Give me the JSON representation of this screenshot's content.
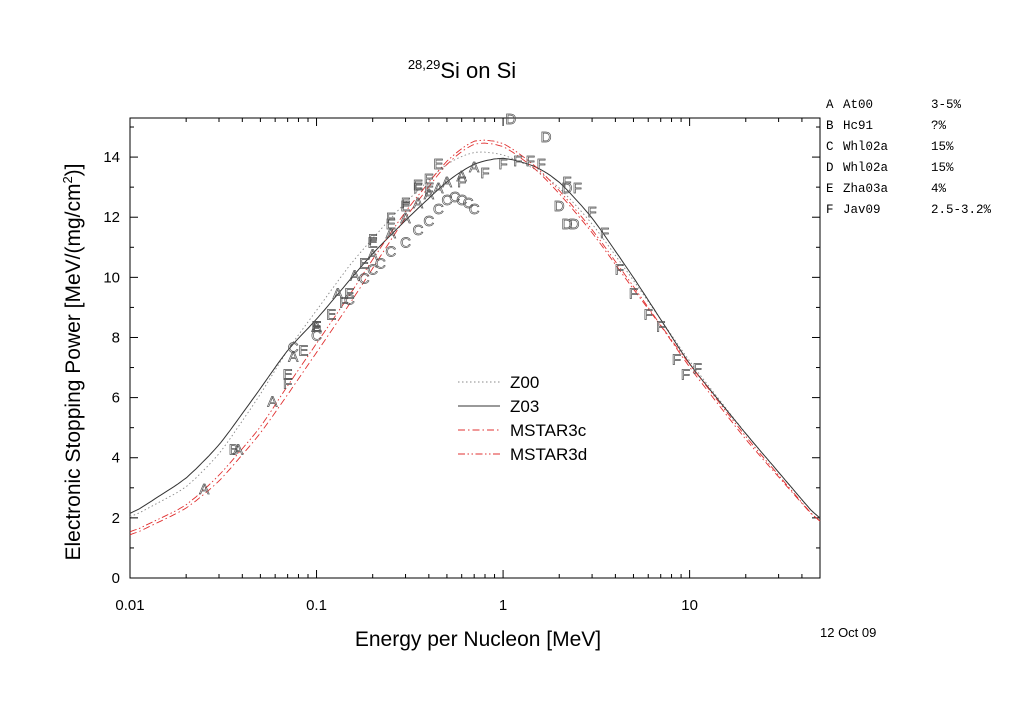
{
  "chart_data": {
    "type": "line",
    "title_sup": "28,29",
    "title_main": "Si on Si",
    "xlabel": "Energy per Nucleon [MeV]",
    "ylabel_main": "Electronic Stopping Power [MeV/(mg/cm",
    "ylabel_sup": "2",
    "ylabel_end": ")]",
    "x_scale": "log",
    "xlim": [
      0.01,
      50
    ],
    "ylim": [
      0,
      15.3
    ],
    "x_ticks": [
      {
        "value": 0.01,
        "label": "0.01"
      },
      {
        "value": 0.1,
        "label": "0.1"
      },
      {
        "value": 1,
        "label": "1"
      },
      {
        "value": 10,
        "label": "10"
      }
    ],
    "y_ticks": [
      {
        "value": 0,
        "label": "0"
      },
      {
        "value": 2,
        "label": "2"
      },
      {
        "value": 4,
        "label": "4"
      },
      {
        "value": 6,
        "label": "6"
      },
      {
        "value": 8,
        "label": "8"
      },
      {
        "value": 10,
        "label": "10"
      },
      {
        "value": 12,
        "label": "12"
      },
      {
        "value": 14,
        "label": "14"
      }
    ],
    "grid": false,
    "legend_position": "center",
    "series": [
      {
        "name": "Z00",
        "style": "dotted",
        "color": "#888888",
        "points": [
          [
            0.01,
            2.0
          ],
          [
            0.02,
            3.0
          ],
          [
            0.03,
            4.1
          ],
          [
            0.05,
            6.1
          ],
          [
            0.07,
            7.6
          ],
          [
            0.1,
            8.9
          ],
          [
            0.15,
            10.4
          ],
          [
            0.2,
            11.3
          ],
          [
            0.3,
            12.5
          ],
          [
            0.5,
            13.8
          ],
          [
            0.7,
            14.2
          ],
          [
            1,
            14.1
          ],
          [
            1.5,
            13.6
          ],
          [
            2,
            13.0
          ],
          [
            3,
            11.8
          ],
          [
            5,
            9.9
          ],
          [
            7,
            8.6
          ],
          [
            10,
            7.2
          ],
          [
            20,
            4.8
          ],
          [
            50,
            1.9
          ]
        ]
      },
      {
        "name": "Z03",
        "style": "solid",
        "color": "#333333",
        "points": [
          [
            0.01,
            2.1
          ],
          [
            0.02,
            3.3
          ],
          [
            0.03,
            4.4
          ],
          [
            0.05,
            6.3
          ],
          [
            0.07,
            7.6
          ],
          [
            0.1,
            8.6
          ],
          [
            0.15,
            9.9
          ],
          [
            0.2,
            10.8
          ],
          [
            0.3,
            11.9
          ],
          [
            0.5,
            13.2
          ],
          [
            0.7,
            13.8
          ],
          [
            1,
            14.0
          ],
          [
            1.5,
            13.7
          ],
          [
            2,
            13.2
          ],
          [
            3,
            12.0
          ],
          [
            5,
            10.0
          ],
          [
            7,
            8.6
          ],
          [
            10,
            7.1
          ],
          [
            20,
            4.8
          ],
          [
            50,
            1.9
          ]
        ]
      },
      {
        "name": "MSTAR3c",
        "style": "dashdot",
        "color": "#e03030",
        "points": [
          [
            0.01,
            1.4
          ],
          [
            0.02,
            2.3
          ],
          [
            0.03,
            3.2
          ],
          [
            0.05,
            4.8
          ],
          [
            0.07,
            6.1
          ],
          [
            0.1,
            7.5
          ],
          [
            0.15,
            9.1
          ],
          [
            0.2,
            10.3
          ],
          [
            0.3,
            12.0
          ],
          [
            0.5,
            13.8
          ],
          [
            0.7,
            14.5
          ],
          [
            1,
            14.4
          ],
          [
            1.5,
            13.6
          ],
          [
            2,
            12.8
          ],
          [
            3,
            11.5
          ],
          [
            5,
            9.6
          ],
          [
            7,
            8.4
          ],
          [
            10,
            7.0
          ],
          [
            20,
            4.6
          ],
          [
            50,
            1.8
          ]
        ]
      },
      {
        "name": "MSTAR3d",
        "style": "dashdotdot",
        "color": "#e03030",
        "points": [
          [
            0.01,
            1.5
          ],
          [
            0.02,
            2.4
          ],
          [
            0.03,
            3.4
          ],
          [
            0.05,
            5.0
          ],
          [
            0.07,
            6.4
          ],
          [
            0.1,
            7.8
          ],
          [
            0.15,
            9.4
          ],
          [
            0.2,
            10.6
          ],
          [
            0.3,
            12.2
          ],
          [
            0.5,
            13.9
          ],
          [
            0.7,
            14.6
          ],
          [
            1,
            14.5
          ],
          [
            1.5,
            13.7
          ],
          [
            2,
            12.9
          ],
          [
            3,
            11.6
          ],
          [
            5,
            9.7
          ],
          [
            7,
            8.4
          ],
          [
            10,
            7.1
          ],
          [
            20,
            4.7
          ],
          [
            50,
            1.8
          ]
        ]
      }
    ],
    "markers": [
      {
        "label": "A",
        "points": [
          [
            0.025,
            3.0
          ],
          [
            0.038,
            4.3
          ],
          [
            0.058,
            5.9
          ],
          [
            0.075,
            7.4
          ],
          [
            0.1,
            8.4
          ],
          [
            0.13,
            9.5
          ],
          [
            0.16,
            10.1
          ],
          [
            0.2,
            10.8
          ],
          [
            0.25,
            11.5
          ],
          [
            0.3,
            12.0
          ],
          [
            0.35,
            12.5
          ],
          [
            0.4,
            12.8
          ],
          [
            0.45,
            13.0
          ],
          [
            0.5,
            13.2
          ],
          [
            0.6,
            13.4
          ],
          [
            0.7,
            13.7
          ]
        ]
      },
      {
        "label": "B",
        "points": [
          [
            0.036,
            4.3
          ]
        ]
      },
      {
        "label": "C",
        "points": [
          [
            0.075,
            7.7
          ],
          [
            0.1,
            8.1
          ],
          [
            0.15,
            9.3
          ],
          [
            0.18,
            10.0
          ],
          [
            0.2,
            10.3
          ],
          [
            0.22,
            10.5
          ],
          [
            0.25,
            10.9
          ],
          [
            0.3,
            11.2
          ],
          [
            0.35,
            11.6
          ],
          [
            0.4,
            11.9
          ],
          [
            0.45,
            12.3
          ],
          [
            0.5,
            12.6
          ],
          [
            0.55,
            12.7
          ],
          [
            0.6,
            12.6
          ],
          [
            0.65,
            12.5
          ],
          [
            0.7,
            12.3
          ]
        ]
      },
      {
        "label": "D",
        "points": [
          [
            1.1,
            15.3
          ],
          [
            1.7,
            14.7
          ],
          [
            2.0,
            12.4
          ],
          [
            2.2,
            13.0
          ],
          [
            2.4,
            11.8
          ],
          [
            2.2,
            11.8
          ]
        ]
      },
      {
        "label": "E",
        "points": [
          [
            0.07,
            6.8
          ],
          [
            0.085,
            7.6
          ],
          [
            0.1,
            8.4
          ],
          [
            0.12,
            8.8
          ],
          [
            0.15,
            9.5
          ],
          [
            0.18,
            10.5
          ],
          [
            0.2,
            11.2
          ],
          [
            0.25,
            11.8
          ],
          [
            0.3,
            12.4
          ],
          [
            0.35,
            13.1
          ],
          [
            0.4,
            13.3
          ],
          [
            0.45,
            13.8
          ]
        ]
      },
      {
        "label": "F",
        "points": [
          [
            0.07,
            6.5
          ],
          [
            0.1,
            8.4
          ],
          [
            0.14,
            9.2
          ],
          [
            0.2,
            11.3
          ],
          [
            0.25,
            12.0
          ],
          [
            0.3,
            12.5
          ],
          [
            0.35,
            13.0
          ],
          [
            0.4,
            12.9
          ],
          [
            0.6,
            13.2
          ],
          [
            0.8,
            13.5
          ],
          [
            1.0,
            13.8
          ],
          [
            1.2,
            13.9
          ],
          [
            1.4,
            13.9
          ],
          [
            1.6,
            13.8
          ],
          [
            2.2,
            13.2
          ],
          [
            2.5,
            13.0
          ],
          [
            3.0,
            12.2
          ],
          [
            3.5,
            11.5
          ],
          [
            4.2,
            10.3
          ],
          [
            5.0,
            9.5
          ],
          [
            6.0,
            8.8
          ],
          [
            7.0,
            8.4
          ],
          [
            8.5,
            7.3
          ],
          [
            9.5,
            6.8
          ],
          [
            11,
            7.0
          ]
        ]
      }
    ],
    "legend": [
      "Z00",
      "Z03",
      "MSTAR3c",
      "MSTAR3d"
    ],
    "key_entries": [
      {
        "letter": "A",
        "ref": "At00",
        "unc": "3-5%"
      },
      {
        "letter": "B",
        "ref": "Hc91",
        "unc": "?%"
      },
      {
        "letter": "C",
        "ref": "Whl02a",
        "unc": "15%"
      },
      {
        "letter": "D",
        "ref": "Whl02a",
        "unc": "15%"
      },
      {
        "letter": "E",
        "ref": "Zha03a",
        "unc": "4%"
      },
      {
        "letter": "F",
        "ref": "Jav09",
        "unc": "2.5-3.2%"
      }
    ],
    "date": "12 Oct 09"
  }
}
